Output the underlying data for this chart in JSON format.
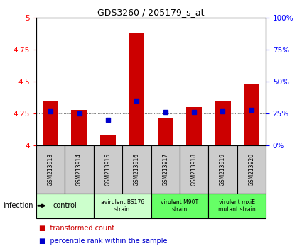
{
  "title": "GDS3260 / 205179_s_at",
  "samples": [
    "GSM213913",
    "GSM213914",
    "GSM213915",
    "GSM213916",
    "GSM213917",
    "GSM213918",
    "GSM213919",
    "GSM213920"
  ],
  "transformed_counts": [
    4.35,
    4.28,
    4.08,
    4.88,
    4.22,
    4.3,
    4.35,
    4.48
  ],
  "percentile_ranks": [
    27,
    25,
    20,
    35,
    26,
    26,
    27,
    28
  ],
  "ylim_left": [
    4.0,
    5.0
  ],
  "ylim_right": [
    0,
    100
  ],
  "yticks_left": [
    4.0,
    4.25,
    4.5,
    4.75,
    5.0
  ],
  "yticks_right": [
    0,
    25,
    50,
    75,
    100
  ],
  "ytick_labels_left": [
    "4",
    "4.25",
    "4.5",
    "4.75",
    "5"
  ],
  "ytick_labels_right": [
    "0%",
    "25%",
    "50%",
    "75%",
    "100%"
  ],
  "bar_color": "#cc0000",
  "dot_color": "#0000cc",
  "bar_width": 0.55,
  "group_colors": [
    "#ccffcc",
    "#ccffcc",
    "#66ff66",
    "#66ff66"
  ],
  "group_labels": [
    "control",
    "avirulent BS176\nstrain",
    "virulent M90T\nstrain",
    "virulent mxiE\nmutant strain"
  ],
  "group_sample_counts": [
    2,
    2,
    2,
    2
  ],
  "sample_box_color": "#cccccc",
  "infection_label": "infection",
  "legend_red_label": "transformed count",
  "legend_blue_label": "percentile rank within the sample"
}
